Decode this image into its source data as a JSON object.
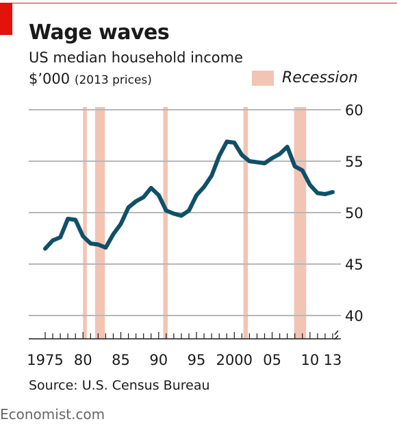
{
  "header": {
    "title": "Wage waves",
    "subtitle": "US median household income",
    "units_main": "$’000",
    "units_note": "(2013 prices)"
  },
  "legend": {
    "recession_label": "Recession",
    "recession_color": "#f2c4b4"
  },
  "footer": {
    "source": "Source: U.S. Census Bureau",
    "brand": "Economist.com"
  },
  "chart_data": {
    "type": "line",
    "title": "Wage waves",
    "subtitle": "US median household income",
    "ylabel": "$’000 (2013 prices)",
    "x": [
      1975,
      1976,
      1977,
      1978,
      1979,
      1980,
      1981,
      1982,
      1983,
      1984,
      1985,
      1986,
      1987,
      1988,
      1989,
      1990,
      1991,
      1992,
      1993,
      1994,
      1995,
      1996,
      1997,
      1998,
      1999,
      2000,
      2001,
      2002,
      2003,
      2004,
      2005,
      2006,
      2007,
      2008,
      2009,
      2010,
      2011,
      2012,
      2013
    ],
    "series": [
      {
        "values": [
          46.5,
          47.3,
          47.6,
          49.4,
          49.3,
          47.7,
          47.0,
          46.9,
          46.6,
          47.9,
          48.9,
          50.5,
          51.1,
          51.5,
          52.4,
          51.7,
          50.2,
          49.9,
          49.7,
          50.2,
          51.7,
          52.5,
          53.6,
          55.5,
          56.9,
          56.8,
          55.6,
          55.0,
          54.9,
          54.8,
          55.3,
          55.7,
          56.4,
          54.5,
          54.1,
          52.7,
          51.9,
          51.8,
          52.0
        ],
        "color": "#0f5068"
      }
    ],
    "recessions": [
      [
        1980.0,
        1980.5
      ],
      [
        1981.6,
        1982.9
      ],
      [
        1990.6,
        1991.2
      ],
      [
        2001.2,
        2001.8
      ],
      [
        2007.9,
        2009.5
      ]
    ],
    "ylim": [
      38.3,
      60
    ],
    "xlim": [
      1974.5,
      2014
    ],
    "yticks": [
      "60",
      "55",
      "50",
      "45",
      "40"
    ],
    "xtick_labels": [
      {
        "year": 1975,
        "label": "1975"
      },
      {
        "year": 1980,
        "label": "80"
      },
      {
        "year": 1985,
        "label": "85"
      },
      {
        "year": 1990,
        "label": "90"
      },
      {
        "year": 1995,
        "label": "95"
      },
      {
        "year": 2000,
        "label": "2000"
      },
      {
        "year": 2005,
        "label": "05"
      },
      {
        "year": 2010,
        "label": "10"
      },
      {
        "year": 2013,
        "label": "13"
      }
    ],
    "grid": true,
    "legend_position": "top-right",
    "colors": {
      "line": "#0f5068",
      "recession": "#f2c4b4",
      "grid": "#b7b7b7"
    }
  }
}
